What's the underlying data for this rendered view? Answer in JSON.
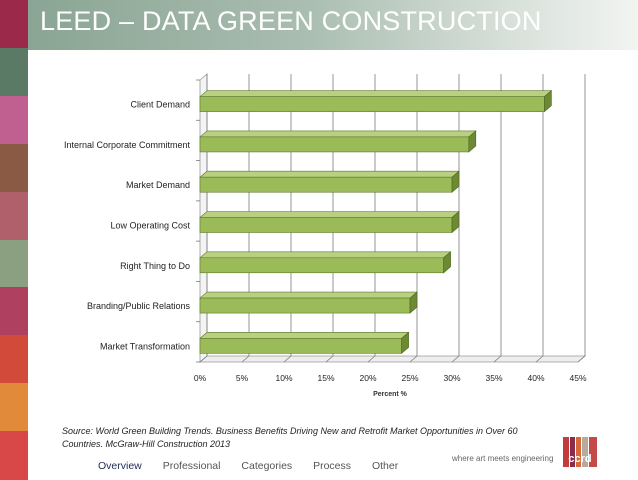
{
  "header": {
    "title": "LEED – DATA GREEN CONSTRUCTION"
  },
  "colors": {
    "bar_front": "#9bbb59",
    "bar_top": "#b9d080",
    "bar_side": "#6b8a33",
    "strip": [
      "#9b2a4a",
      "#5b7a66",
      "#c06090",
      "#8a5a45",
      "#b0606a",
      "#8aa080",
      "#b04060",
      "#d24a3a",
      "#e08a3a",
      "#d84848"
    ]
  },
  "chart_data": {
    "type": "bar",
    "orientation": "horizontal",
    "categories": [
      "Client Demand",
      "Internal Corporate Commitment",
      "Market Demand",
      "Low Operating Cost",
      "Right Thing to Do",
      "Branding/Public Relations",
      "Market Transformation"
    ],
    "values": [
      41,
      32,
      30,
      30,
      29,
      25,
      24
    ],
    "xlim": [
      0,
      45
    ],
    "xticks": [
      "0%",
      "5%",
      "10%",
      "15%",
      "20%",
      "25%",
      "30%",
      "35%",
      "40%",
      "45%"
    ],
    "xlabel": "Percent %",
    "ylabel": "",
    "grid": true,
    "style": "3d"
  },
  "source": {
    "line1": "Source: World Green Building Trends. Business Benefits Driving New and Retrofit Market Opportunities in Over 60",
    "line2": "Countries.  McGraw-Hill Construction 2013"
  },
  "footer": {
    "tagline": "where art meets engineering",
    "logo_text": "ccrd",
    "nav": [
      {
        "label": "Overview",
        "active": true
      },
      {
        "label": "Professional",
        "active": false
      },
      {
        "label": "Categories",
        "active": false
      },
      {
        "label": "Process",
        "active": false
      },
      {
        "label": "Other",
        "active": false
      }
    ]
  }
}
